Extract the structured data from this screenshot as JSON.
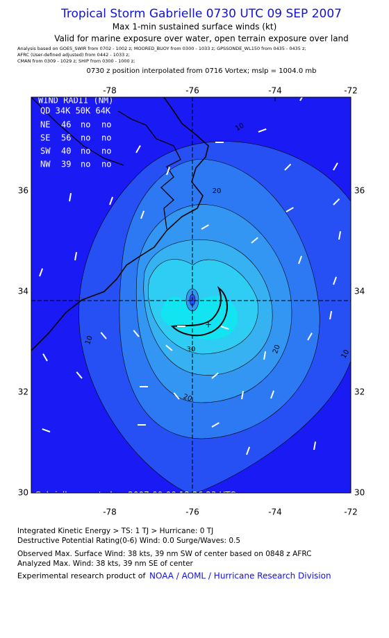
{
  "header": {
    "title": "Tropical Storm Gabrielle 0730 UTC 09 SEP 2007",
    "subtitle": "Max 1-min sustained surface winds (kt)",
    "valid": "Valid for marine exposure over water, open terrain exposure over land",
    "sources": [
      "Analysis based on  GOES_SWIR from 0702 - 1002 z;  MOORED_BUOY from 0300 - 1033 z;  GPSSONDE_WL150 from 0435 - 0435 z;",
      "AFRC (User-defined adjusted) from 0442 - 1033 z;",
      "CMAN from 0309 - 1029 z;  SHIP from 0300 - 1000 z;"
    ],
    "position": "0730 z position interpolated from 0716 Vortex; mslp = 1004.0 mb"
  },
  "map": {
    "lon_ticks": [
      "-78",
      "-76",
      "-74",
      "-72"
    ],
    "lat_ticks": [
      "36",
      "34",
      "32",
      "30"
    ],
    "contour_labels": [
      "10",
      "10",
      "10",
      "20",
      "20",
      "20",
      "30"
    ],
    "radii": {
      "title": "WIND RADII (NM)",
      "header": "QD 34K 50K 64K",
      "rows": [
        [
          "NE",
          "46",
          "no",
          "no"
        ],
        [
          "SE",
          "56",
          "no",
          "no"
        ],
        [
          "SW",
          "40",
          "no",
          "no"
        ],
        [
          "NW",
          "39",
          "no",
          "no"
        ]
      ]
    },
    "credit": "Gabrielle - created on 2007-09-09 12:26:23 UTC"
  },
  "footer": {
    "lines": [
      "Integrated Kinetic Energy > TS: 1 TJ   > Hurricane: 0 TJ",
      "Destructive Potential Rating(0-6)   Wind: 0.0 Surge/Waves: 0.5",
      "Observed Max. Surface Wind: 38 kts, 39 nm SW of center based on 0848 z AFRC",
      "Analyzed Max. Wind: 38 kts, 39 nm SE of center"
    ],
    "product": "Experimental research product of",
    "link": "NOAA / AOML / Hurricane Research Division"
  }
}
